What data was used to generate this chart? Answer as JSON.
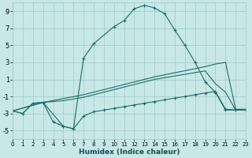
{
  "xlabel": "Humidex (Indice chaleur)",
  "bg_color": "#c8e8e8",
  "grid_color": "#a0c8c8",
  "line_color": "#1a6e6a",
  "xlim": [
    0,
    23
  ],
  "ylim": [
    -6,
    10
  ],
  "yticks": [
    -5,
    -3,
    -1,
    1,
    3,
    5,
    7,
    9
  ],
  "xticks": [
    0,
    1,
    2,
    3,
    4,
    5,
    6,
    7,
    8,
    9,
    10,
    11,
    12,
    13,
    14,
    15,
    16,
    17,
    18,
    19,
    20,
    21,
    22,
    23
  ],
  "series": [
    {
      "x": [
        0,
        3,
        5,
        6,
        7,
        8,
        10,
        11,
        12,
        13,
        14,
        15,
        16,
        17,
        18,
        19,
        20,
        21,
        22,
        23
      ],
      "y": [
        -2.7,
        -1.7,
        -4.5,
        -4.8,
        3.5,
        5.2,
        7.2,
        7.9,
        9.3,
        9.7,
        9.4,
        8.7,
        6.8,
        5.0,
        3.0,
        0.7,
        -0.5,
        -2.6,
        -2.6,
        -2.6
      ],
      "marker": "+"
    },
    {
      "x": [
        0,
        3,
        7,
        14,
        19,
        20,
        21,
        22,
        23
      ],
      "y": [
        -2.7,
        -1.7,
        -0.8,
        1.3,
        2.5,
        2.8,
        3.0,
        -2.5,
        -2.5
      ],
      "marker": null
    },
    {
      "x": [
        0,
        1,
        2,
        3,
        4,
        5,
        6,
        7,
        8,
        9,
        10,
        11,
        12,
        13,
        14,
        15,
        16,
        17,
        18,
        19,
        20,
        21,
        22,
        23
      ],
      "y": [
        -2.7,
        -3.0,
        -1.8,
        -1.7,
        -1.6,
        -1.5,
        -1.3,
        -1.1,
        -0.8,
        -0.5,
        -0.2,
        0.1,
        0.4,
        0.7,
        1.0,
        1.2,
        1.4,
        1.6,
        1.8,
        2.0,
        0.5,
        -0.5,
        -2.6,
        -2.6
      ],
      "marker": null
    },
    {
      "x": [
        0,
        1,
        2,
        3,
        4,
        5,
        6,
        7,
        8,
        9,
        10,
        11,
        12,
        13,
        14,
        15,
        16,
        17,
        18,
        19,
        20,
        21,
        22,
        23
      ],
      "y": [
        -2.7,
        -3.0,
        -1.8,
        -1.7,
        -4.0,
        -4.5,
        -4.8,
        -3.3,
        -2.8,
        -2.6,
        -2.4,
        -2.2,
        -2.0,
        -1.8,
        -1.6,
        -1.4,
        -1.2,
        -1.0,
        -0.8,
        -0.6,
        -0.4,
        -2.5,
        -2.6,
        -2.6
      ],
      "marker": "+"
    }
  ]
}
